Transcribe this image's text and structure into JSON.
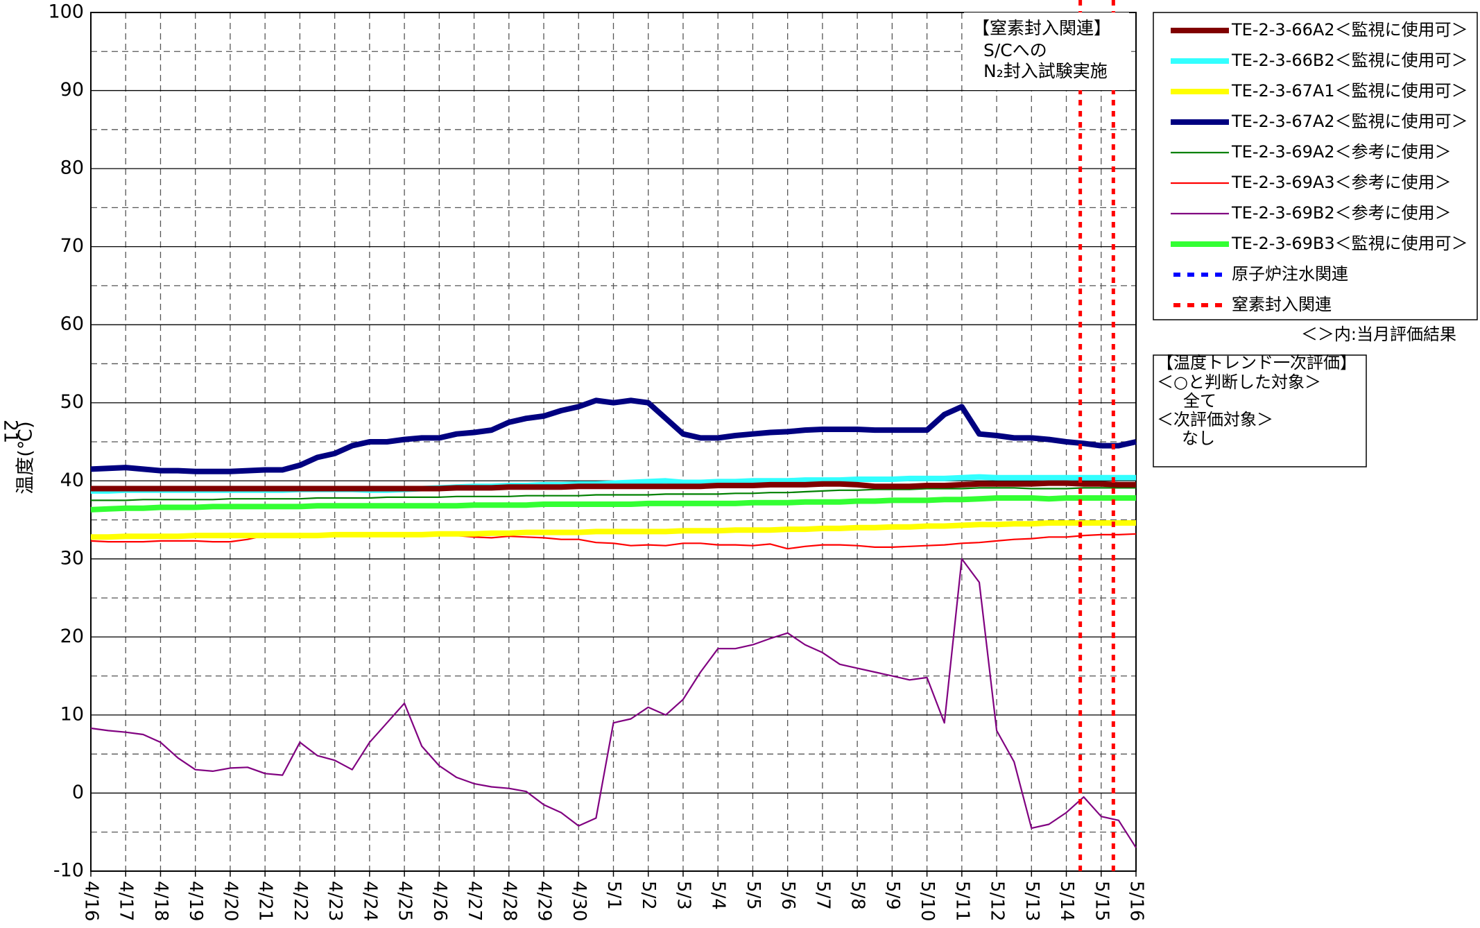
{
  "chart_data": {
    "type": "line",
    "y_label": "温度(℃)",
    "y_label_prefix": "21",
    "ylim": [
      -10,
      100
    ],
    "yticks": [
      -10,
      0,
      10,
      20,
      30,
      40,
      50,
      60,
      70,
      80,
      90,
      100
    ],
    "minor_yticks": [
      -5,
      5,
      15,
      25,
      35,
      45,
      55,
      65,
      75,
      85,
      95
    ],
    "grid": true,
    "categories": [
      "4/16",
      null,
      "4/17",
      null,
      "4/18",
      null,
      "4/19",
      null,
      "4/20",
      null,
      "4/21",
      null,
      "4/22",
      null,
      "4/23",
      null,
      "4/24",
      null,
      "4/25",
      null,
      "4/26",
      null,
      "4/27",
      null,
      "4/28",
      null,
      "4/29",
      null,
      "4/30",
      null,
      "5/1",
      null,
      "5/2",
      null,
      "5/3",
      null,
      "5/4",
      null,
      "5/5",
      null,
      "5/6",
      null,
      "5/7",
      null,
      "5/8",
      null,
      "5/9",
      null,
      "5/10",
      null,
      "5/11",
      null,
      "5/12",
      null,
      "5/13",
      null,
      "5/14",
      null,
      "5/15",
      null,
      "5/16"
    ],
    "series": [
      {
        "name": "TE-2-3-66A2＜監視に使用可＞",
        "color": "#800000",
        "line_width": "thick",
        "values": [
          39.0,
          39.0,
          39.0,
          39.0,
          39.0,
          39.0,
          39.0,
          39.0,
          39.0,
          39.0,
          39.0,
          39.0,
          39.0,
          39.0,
          39.0,
          39.0,
          39.0,
          39.0,
          39.0,
          39.0,
          39.0,
          39.1,
          39.1,
          39.1,
          39.2,
          39.2,
          39.2,
          39.2,
          39.3,
          39.3,
          39.3,
          39.3,
          39.3,
          39.3,
          39.3,
          39.3,
          39.4,
          39.4,
          39.4,
          39.5,
          39.5,
          39.5,
          39.6,
          39.6,
          39.5,
          39.3,
          39.3,
          39.3,
          39.4,
          39.4,
          39.5,
          39.6,
          39.6,
          39.6,
          39.6,
          39.7,
          39.7,
          39.6,
          39.6,
          39.5,
          39.5
        ]
      },
      {
        "name": "TE-2-3-66B2＜監視に使用可＞",
        "color": "#33ffff",
        "line_width": "thick",
        "values": [
          38.7,
          38.7,
          38.8,
          38.8,
          38.8,
          38.8,
          38.8,
          38.8,
          38.8,
          38.8,
          38.8,
          38.8,
          38.9,
          38.9,
          38.9,
          38.9,
          38.8,
          38.8,
          38.9,
          39.0,
          39.1,
          39.2,
          39.3,
          39.3,
          39.4,
          39.4,
          39.5,
          39.5,
          39.6,
          39.6,
          39.7,
          39.8,
          39.9,
          40.0,
          39.8,
          39.8,
          39.9,
          39.9,
          40.0,
          40.0,
          40.0,
          40.1,
          40.1,
          40.1,
          40.2,
          40.2,
          40.2,
          40.3,
          40.3,
          40.3,
          40.4,
          40.5,
          40.4,
          40.4,
          40.4,
          40.4,
          40.4,
          40.4,
          40.4,
          40.4,
          40.4
        ]
      },
      {
        "name": "TE-2-3-67A1＜監視に使用可＞",
        "color": "#ffff00",
        "line_width": "thick",
        "values": [
          32.8,
          32.8,
          32.9,
          32.9,
          32.9,
          32.9,
          33.0,
          33.0,
          33.0,
          33.0,
          33.0,
          33.0,
          33.0,
          33.0,
          33.1,
          33.1,
          33.1,
          33.1,
          33.1,
          33.1,
          33.2,
          33.2,
          33.2,
          33.3,
          33.3,
          33.4,
          33.4,
          33.4,
          33.4,
          33.5,
          33.5,
          33.5,
          33.5,
          33.5,
          33.6,
          33.6,
          33.6,
          33.7,
          33.7,
          33.7,
          33.8,
          33.8,
          33.9,
          33.9,
          34.0,
          34.0,
          34.1,
          34.1,
          34.2,
          34.2,
          34.3,
          34.4,
          34.4,
          34.5,
          34.5,
          34.6,
          34.6,
          34.6,
          34.6,
          34.6,
          34.6
        ]
      },
      {
        "name": "TE-2-3-67A2＜監視に使用可＞",
        "color": "#000080",
        "line_width": "thick",
        "values": [
          41.5,
          41.6,
          41.7,
          41.5,
          41.3,
          41.3,
          41.2,
          41.2,
          41.2,
          41.3,
          41.4,
          41.4,
          42.0,
          43.0,
          43.5,
          44.5,
          45.0,
          45.0,
          45.3,
          45.5,
          45.5,
          46.0,
          46.2,
          46.5,
          47.5,
          48.0,
          48.3,
          49.0,
          49.5,
          50.3,
          50.0,
          50.3,
          50.0,
          48.0,
          46.0,
          45.5,
          45.5,
          45.8,
          46.0,
          46.2,
          46.3,
          46.5,
          46.6,
          46.6,
          46.6,
          46.5,
          46.5,
          46.5,
          46.5,
          48.5,
          49.5,
          46.0,
          45.8,
          45.5,
          45.5,
          45.3,
          45.0,
          44.8,
          44.5,
          44.5,
          45.0
        ]
      },
      {
        "name": "TE-2-3-69A2＜参考に使用＞",
        "color": "#008000",
        "line_width": "thin",
        "values": [
          37.5,
          37.5,
          37.5,
          37.6,
          37.6,
          37.6,
          37.6,
          37.6,
          37.7,
          37.7,
          37.7,
          37.7,
          37.7,
          37.8,
          37.8,
          37.8,
          37.8,
          37.9,
          37.9,
          37.9,
          37.9,
          38.0,
          38.0,
          38.0,
          38.0,
          38.1,
          38.1,
          38.1,
          38.1,
          38.2,
          38.2,
          38.2,
          38.2,
          38.3,
          38.3,
          38.3,
          38.3,
          38.4,
          38.4,
          38.5,
          38.5,
          38.6,
          38.7,
          38.8,
          38.8,
          38.9,
          38.9,
          38.9,
          39.0,
          39.0,
          39.0,
          39.1,
          39.1,
          39.1,
          39.0,
          39.0,
          39.0,
          39.1,
          39.1,
          39.1,
          39.1
        ]
      },
      {
        "name": "TE-2-3-69A3＜参考に使用＞",
        "color": "#ff0000",
        "line_width": "thin",
        "values": [
          32.3,
          32.2,
          32.2,
          32.2,
          32.3,
          32.3,
          32.3,
          32.2,
          32.2,
          32.5,
          33.0,
          33.0,
          33.0,
          32.9,
          33.0,
          33.1,
          33.2,
          33.0,
          32.9,
          32.9,
          33.0,
          33.0,
          32.8,
          32.7,
          32.9,
          32.8,
          32.7,
          32.5,
          32.5,
          32.1,
          32.0,
          31.7,
          31.8,
          31.7,
          32.0,
          32.0,
          31.8,
          31.8,
          31.7,
          31.9,
          31.3,
          31.6,
          31.8,
          31.8,
          31.7,
          31.5,
          31.5,
          31.6,
          31.7,
          31.8,
          32.0,
          32.1,
          32.3,
          32.5,
          32.6,
          32.8,
          32.8,
          33.0,
          33.1,
          33.1,
          33.2
        ]
      },
      {
        "name": "TE-2-3-69B2＜参考に使用＞",
        "color": "#800080",
        "line_width": "thin",
        "values": [
          8.3,
          8.0,
          7.8,
          7.5,
          6.5,
          4.5,
          3.0,
          2.8,
          3.2,
          3.3,
          2.5,
          2.3,
          6.5,
          4.8,
          4.2,
          3.0,
          6.5,
          9.0,
          11.5,
          6.0,
          3.5,
          2.0,
          1.2,
          0.8,
          0.6,
          0.2,
          -1.5,
          -2.5,
          -4.2,
          -3.2,
          9.0,
          9.5,
          11.0,
          10.0,
          12.0,
          15.5,
          18.5,
          18.5,
          19.0,
          19.8,
          20.5,
          19.0,
          18.0,
          16.5,
          16.0,
          15.5,
          15.0,
          14.5,
          14.8,
          9.0,
          30.0,
          27.0,
          8.0,
          4.0,
          -4.5,
          -4.0,
          -2.5,
          -0.5,
          -3.0,
          -3.5,
          -7.0
        ]
      },
      {
        "name": "TE-2-3-69B3＜監視に使用可＞",
        "color": "#33ff33",
        "line_width": "thick",
        "values": [
          36.3,
          36.4,
          36.5,
          36.5,
          36.6,
          36.6,
          36.6,
          36.7,
          36.7,
          36.7,
          36.7,
          36.7,
          36.7,
          36.8,
          36.8,
          36.8,
          36.8,
          36.8,
          36.8,
          36.8,
          36.8,
          36.8,
          36.9,
          36.9,
          36.9,
          36.9,
          37.0,
          37.0,
          37.0,
          37.0,
          37.0,
          37.0,
          37.1,
          37.1,
          37.1,
          37.1,
          37.1,
          37.1,
          37.2,
          37.2,
          37.2,
          37.3,
          37.3,
          37.3,
          37.4,
          37.4,
          37.5,
          37.5,
          37.5,
          37.6,
          37.6,
          37.7,
          37.8,
          37.8,
          37.8,
          37.7,
          37.8,
          37.8,
          37.8,
          37.8,
          37.8
        ]
      }
    ],
    "legend_extra": [
      {
        "name": "原子炉注水関連",
        "color": "#0000ff"
      },
      {
        "name": "窒素封入関連",
        "color": "#ff0000"
      }
    ],
    "event_lines": {
      "color": "#ff0000",
      "x": [
        56.8,
        58.7
      ]
    },
    "legend_note": "＜＞内:当月評価結果",
    "annotation_box": [
      "【窒素封入関連】",
      "S/Cへの",
      "N₂封入試験実施"
    ],
    "evaluation_box": [
      "【温度トレンド一次評価】",
      "＜○と判断した対象＞",
      "全て",
      "＜次評価対象＞",
      "なし"
    ]
  }
}
